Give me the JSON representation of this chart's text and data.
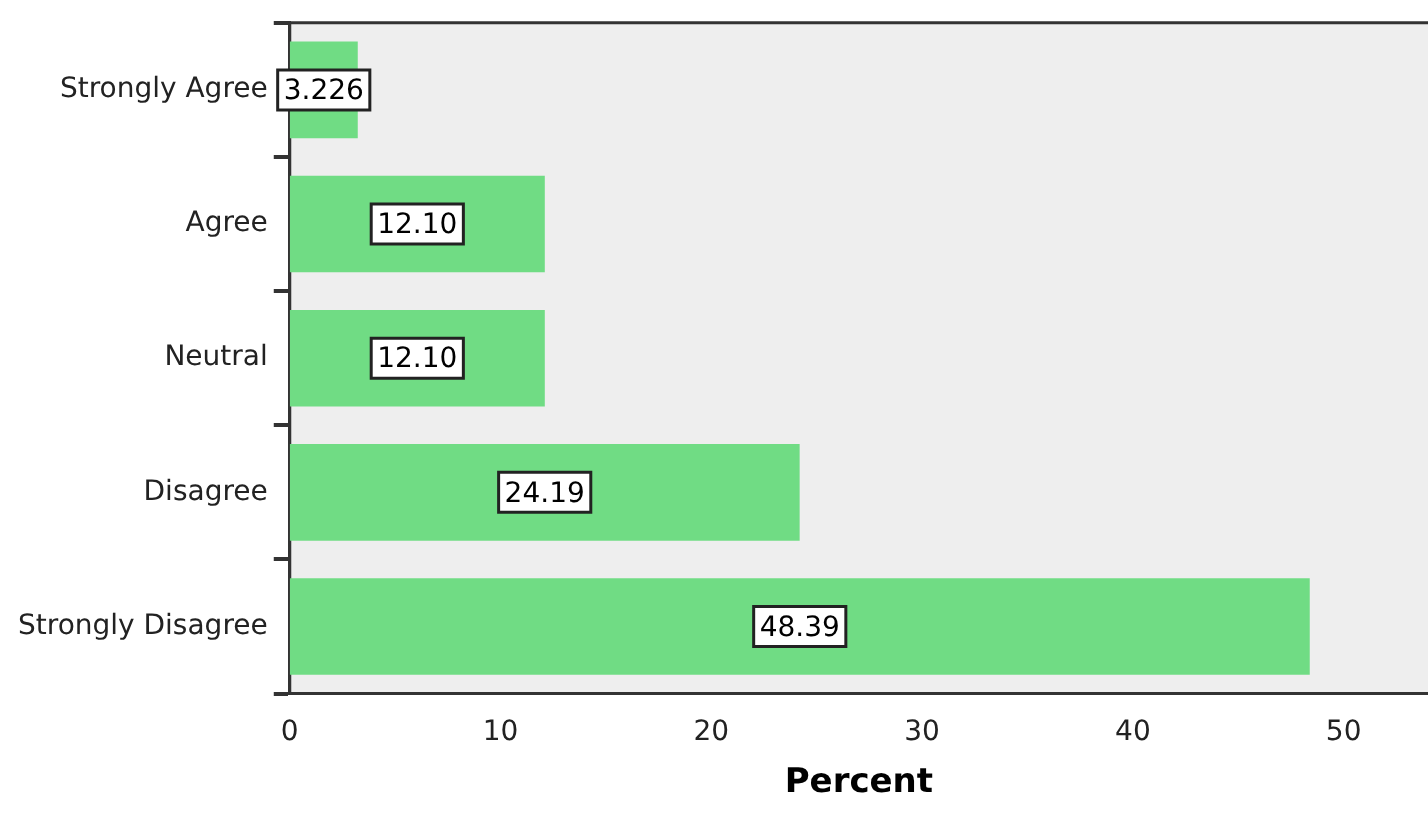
{
  "chart_data": {
    "type": "bar",
    "orientation": "horizontal",
    "categories": [
      "Strongly Agree",
      "Agree",
      "Neutral",
      "Disagree",
      "Strongly Disagree"
    ],
    "values": [
      3.226,
      12.1,
      12.1,
      24.19,
      48.39
    ],
    "value_labels": [
      "3.226",
      "12.10",
      "12.10",
      "24.19",
      "48.39"
    ],
    "color": "#70dc84",
    "xlabel": "Percent",
    "xlim": [
      0,
      54
    ],
    "xticks": [
      0,
      10,
      20,
      30,
      40,
      50
    ],
    "grid": false,
    "legend": false
  }
}
